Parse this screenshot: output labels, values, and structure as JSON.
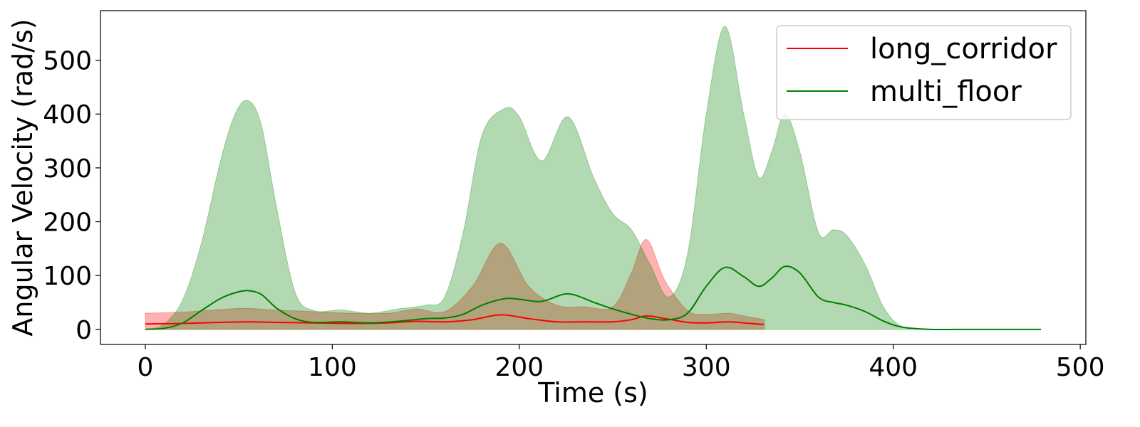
{
  "chart_data": {
    "type": "area",
    "xlabel": "Time (s)",
    "ylabel": "Angular Velocity (rad/s)",
    "xlim": [
      -24,
      503
    ],
    "ylim": [
      -28,
      592
    ],
    "x_ticks": [
      0,
      100,
      200,
      300,
      400,
      500
    ],
    "y_ticks": [
      0,
      100,
      200,
      300,
      400,
      500
    ],
    "grid": false,
    "legend_position": "top-right",
    "series": [
      {
        "name": "long_corridor",
        "color": "#ff0000",
        "fill_color": "#ff0000",
        "x": [
          0,
          20,
          40,
          55,
          70,
          90,
          110,
          130,
          145,
          160,
          175,
          190,
          205,
          220,
          235,
          250,
          260,
          268,
          278,
          290,
          300,
          312,
          320,
          331
        ],
        "mean": [
          10,
          11,
          13,
          14,
          13,
          12,
          11,
          12,
          15,
          14,
          18,
          27,
          20,
          14,
          14,
          14,
          18,
          25,
          20,
          13,
          12,
          14,
          12,
          9
        ],
        "upper": [
          30,
          32,
          37,
          39,
          36,
          33,
          30,
          30,
          38,
          33,
          80,
          160,
          80,
          45,
          42,
          42,
          105,
          167,
          90,
          35,
          28,
          30,
          25,
          18
        ],
        "lower": [
          0,
          0,
          0,
          0,
          0,
          0,
          0,
          0,
          0,
          0,
          0,
          0,
          0,
          0,
          0,
          0,
          0,
          0,
          0,
          0,
          0,
          0,
          0,
          0
        ]
      },
      {
        "name": "multi_floor",
        "color": "#008000",
        "fill_color": "#008000",
        "x": [
          0,
          10,
          20,
          30,
          40,
          48,
          55,
          62,
          70,
          80,
          90,
          105,
          120,
          135,
          150,
          160,
          170,
          180,
          192,
          200,
          212,
          226,
          240,
          250,
          260,
          270,
          280,
          290,
          300,
          310,
          320,
          328,
          335,
          342,
          350,
          360,
          368,
          375,
          385,
          395,
          405,
          420,
          440,
          460,
          479
        ],
        "mean": [
          0,
          2,
          12,
          35,
          57,
          68,
          72,
          65,
          40,
          20,
          13,
          14,
          12,
          15,
          20,
          21,
          28,
          45,
          57,
          56,
          52,
          66,
          50,
          38,
          28,
          20,
          18,
          30,
          80,
          115,
          98,
          80,
          95,
          117,
          105,
          60,
          50,
          45,
          33,
          15,
          4,
          0,
          0,
          0,
          0
        ],
        "upper": [
          0,
          10,
          55,
          160,
          310,
          400,
          425,
          380,
          230,
          70,
          35,
          36,
          30,
          38,
          45,
          60,
          180,
          360,
          410,
          395,
          313,
          395,
          280,
          215,
          185,
          120,
          60,
          140,
          400,
          563,
          400,
          283,
          330,
          400,
          330,
          180,
          185,
          175,
          120,
          40,
          5,
          0,
          0,
          0,
          0
        ],
        "lower": [
          0,
          0,
          0,
          0,
          0,
          0,
          0,
          0,
          0,
          0,
          0,
          0,
          0,
          0,
          0,
          0,
          0,
          0,
          0,
          0,
          0,
          0,
          0,
          0,
          0,
          0,
          0,
          0,
          0,
          0,
          0,
          0,
          0,
          0,
          0,
          0,
          0,
          0,
          0,
          0,
          0,
          0,
          0,
          0,
          0
        ]
      }
    ]
  }
}
